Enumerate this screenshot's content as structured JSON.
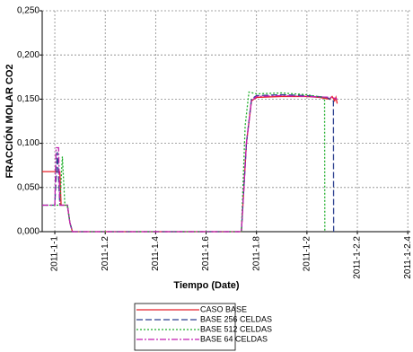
{
  "chart_data": {
    "type": "line",
    "xlabel": "Tiempo (Date)",
    "ylabel": "FRACCIÓN MOLAR CO2",
    "xlim": [
      0.95,
      2.41
    ],
    "ylim": [
      0,
      0.25
    ],
    "xticks": [
      {
        "value": 1.0,
        "label": "2011-1-1"
      },
      {
        "value": 1.2,
        "label": "2011-1.2"
      },
      {
        "value": 1.4,
        "label": "2011-1.4"
      },
      {
        "value": 1.6,
        "label": "2011-1.6"
      },
      {
        "value": 1.8,
        "label": "2011-1.8"
      },
      {
        "value": 2.0,
        "label": "2011-1-2"
      },
      {
        "value": 2.2,
        "label": "2011-1-2.2"
      },
      {
        "value": 2.4,
        "label": "2011-1-2.4"
      }
    ],
    "yticks": [
      {
        "value": 0,
        "label": "0,000"
      },
      {
        "value": 0.05,
        "label": "0,050"
      },
      {
        "value": 0.1,
        "label": "0,100"
      },
      {
        "value": 0.15,
        "label": "0,150"
      },
      {
        "value": 0.2,
        "label": "0,200"
      },
      {
        "value": 0.25,
        "label": "0,250"
      }
    ],
    "grid": true,
    "legend": "bottom",
    "series": [
      {
        "name": "CASO BASE",
        "color": "#e8202a",
        "linestyle": "solid",
        "x": [
          0.95,
          1.0,
          1.02,
          1.025,
          1.05,
          1.06,
          1.07,
          1.74,
          1.76,
          1.78,
          1.8,
          1.9,
          2.0,
          2.05,
          2.09,
          2.1,
          2.11,
          2.115,
          2.12
        ],
        "values": [
          0.068,
          0.068,
          0.068,
          0.03,
          0.03,
          0.01,
          0,
          0,
          0.1,
          0.148,
          0.152,
          0.153,
          0.153,
          0.152,
          0.15,
          0.153,
          0.148,
          0.152,
          0.145
        ]
      },
      {
        "name": "BASE 256 CELDAS",
        "color": "#2b3f8f",
        "linestyle": "dashed",
        "x": [
          0.95,
          1.0,
          1.01,
          1.02,
          1.05,
          1.06,
          1.07,
          1.74,
          1.76,
          1.78,
          1.8,
          1.9,
          2.0,
          2.08,
          2.1,
          2.105,
          2.106
        ],
        "values": [
          0.03,
          0.03,
          0.09,
          0.03,
          0.03,
          0.01,
          0,
          0,
          0.1,
          0.15,
          0.154,
          0.155,
          0.154,
          0.152,
          0.148,
          0.148,
          0
        ]
      },
      {
        "name": "BASE 512 CELDAS",
        "color": "#1fae2a",
        "linestyle": "dotted",
        "x": [
          0.95,
          1.0,
          1.02,
          1.03,
          1.04,
          1.05,
          1.06,
          1.07,
          1.74,
          1.755,
          1.77,
          1.8,
          1.9,
          2.0,
          2.06,
          2.07,
          2.071
        ],
        "values": [
          0.03,
          0.03,
          0.03,
          0.085,
          0.03,
          0.03,
          0.01,
          0,
          0,
          0.12,
          0.158,
          0.156,
          0.157,
          0.155,
          0.152,
          0.152,
          0
        ]
      },
      {
        "name": "BASE 64 CELDAS",
        "color": "#c21fb0",
        "linestyle": "dashdot",
        "x": [
          0.95,
          1.0,
          1.005,
          1.015,
          1.02,
          1.05,
          1.06,
          1.07,
          1.74,
          1.76,
          1.78,
          1.8,
          1.9,
          2.0,
          2.1,
          2.12
        ],
        "values": [
          0.03,
          0.03,
          0.095,
          0.095,
          0.03,
          0.03,
          0.01,
          0,
          0,
          0.1,
          0.148,
          0.153,
          0.154,
          0.153,
          0.152,
          0.15
        ]
      }
    ]
  }
}
